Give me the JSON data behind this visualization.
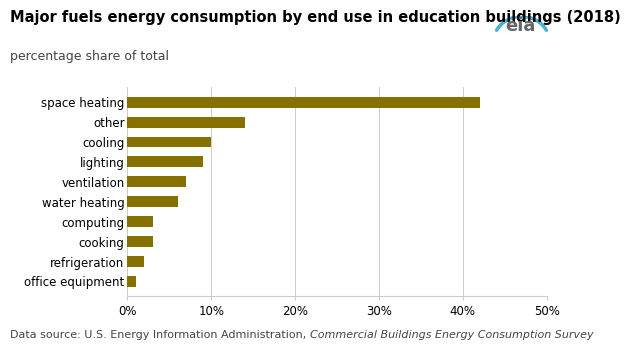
{
  "title": "Major fuels energy consumption by end use in education buildings (2018)",
  "subtitle": "percentage share of total",
  "categories": [
    "space heating",
    "other",
    "cooling",
    "lighting",
    "ventilation",
    "water heating",
    "computing",
    "cooking",
    "refrigeration",
    "office equipment"
  ],
  "values": [
    42,
    14,
    10,
    9,
    7,
    6,
    3,
    3,
    2,
    1
  ],
  "bar_color": "#857000",
  "xlim": [
    0,
    50
  ],
  "xticks": [
    0,
    10,
    20,
    30,
    40,
    50
  ],
  "xticklabels": [
    "0%",
    "10%",
    "20%",
    "30%",
    "40%",
    "50%"
  ],
  "footnote_normal": "Data source: U.S. Energy Information Administration, ",
  "footnote_italic": "Commercial Buildings Energy Consumption Survey",
  "background_color": "#ffffff",
  "title_fontsize": 10.5,
  "subtitle_fontsize": 9,
  "tick_fontsize": 8.5,
  "footnote_fontsize": 8,
  "bar_height": 0.55
}
